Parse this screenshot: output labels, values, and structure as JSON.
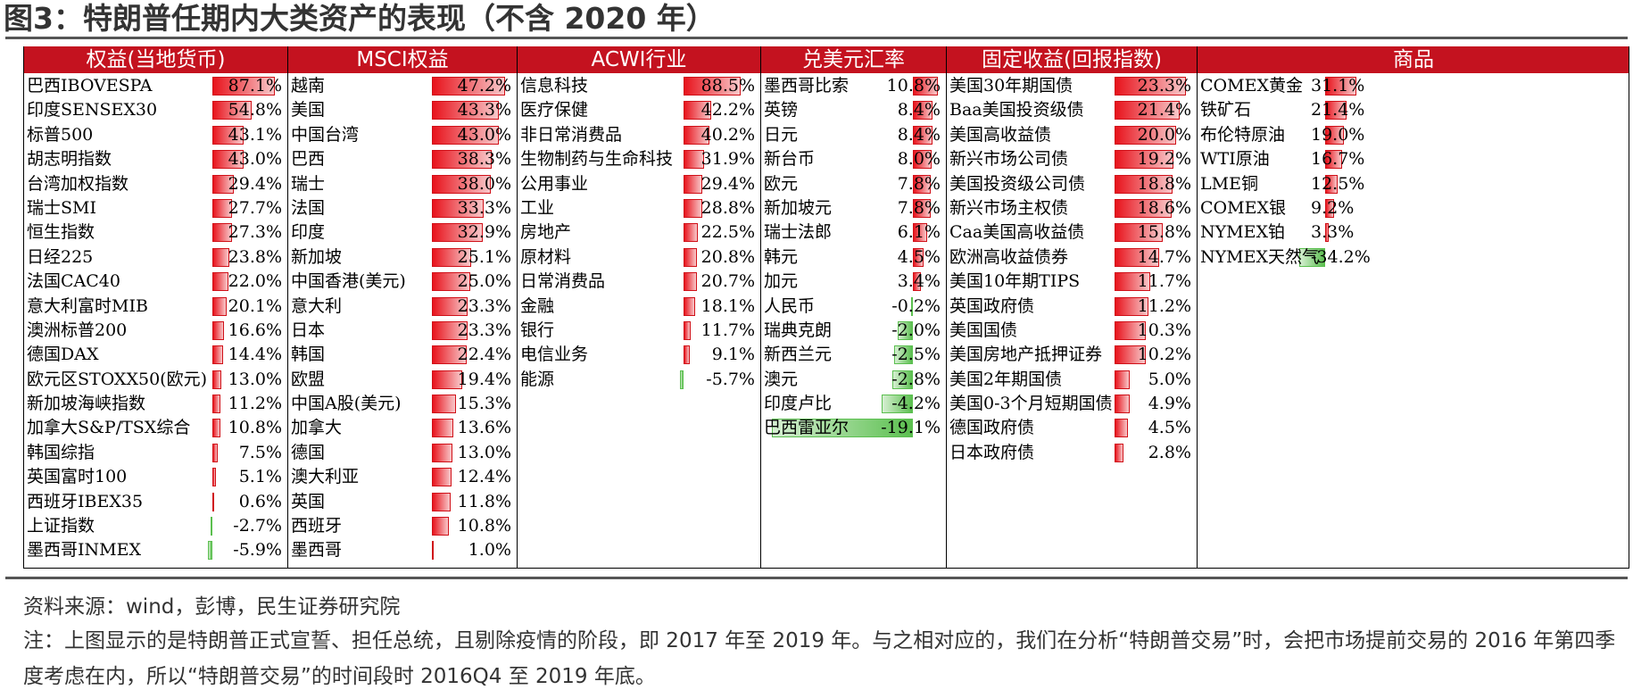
{
  "title": "图3：特朗普任期内大类资产的表现（不含 2020 年）",
  "source": "资料来源：wind，彭博，民生证券研究院",
  "note": "注：上图显示的是特朗普正式宣誓、担任总统，且剔除疫情的阶段，即 2017 年至 2019 年。与之相对应的，我们在分析“特朗普交易”时，会把市场提前交易的 2016 年第四季度考虑在内，所以“特朗普交易”的时间段时 2016Q4 至 2019 年底。",
  "colors": {
    "header": "#c4121f",
    "positive": "#e8131c",
    "negative": "#5bbf4f"
  },
  "chart_data": {
    "type": "table",
    "sections": [
      {
        "header": "权益(当地货币)",
        "max": 87.1,
        "rows": [
          {
            "name": "巴西IBOVESPA",
            "value": 87.1,
            "label": "87.1%"
          },
          {
            "name": "印度SENSEX30",
            "value": 54.8,
            "label": "54.8%"
          },
          {
            "name": "标普500",
            "value": 43.1,
            "label": "43.1%"
          },
          {
            "name": "胡志明指数",
            "value": 43.0,
            "label": "43.0%"
          },
          {
            "name": "台湾加权指数",
            "value": 29.4,
            "label": "29.4%"
          },
          {
            "name": "瑞士SMI",
            "value": 27.7,
            "label": "27.7%"
          },
          {
            "name": "恒生指数",
            "value": 27.3,
            "label": "27.3%"
          },
          {
            "name": "日经225",
            "value": 23.8,
            "label": "23.8%"
          },
          {
            "name": "法国CAC40",
            "value": 22.0,
            "label": "22.0%"
          },
          {
            "name": "意大利富时MIB",
            "value": 20.1,
            "label": "20.1%"
          },
          {
            "name": "澳洲标普200",
            "value": 16.6,
            "label": "16.6%"
          },
          {
            "name": "德国DAX",
            "value": 14.4,
            "label": "14.4%"
          },
          {
            "name": "欧元区STOXX50(欧元)",
            "value": 13.0,
            "label": "13.0%"
          },
          {
            "name": "新加坡海峡指数",
            "value": 11.2,
            "label": "11.2%"
          },
          {
            "name": "加拿大S&P/TSX综合",
            "value": 10.8,
            "label": "10.8%"
          },
          {
            "name": "韩国综指",
            "value": 7.5,
            "label": "7.5%"
          },
          {
            "name": "英国富时100",
            "value": 5.1,
            "label": "5.1%"
          },
          {
            "name": "西班牙IBEX35",
            "value": 0.6,
            "label": "0.6%"
          },
          {
            "name": "上证指数",
            "value": -2.7,
            "label": "-2.7%"
          },
          {
            "name": "墨西哥INMEX",
            "value": -5.9,
            "label": "-5.9%"
          }
        ]
      },
      {
        "header": "MSCI权益",
        "max": 47.2,
        "rows": [
          {
            "name": "越南",
            "value": 47.2,
            "label": "47.2%"
          },
          {
            "name": "美国",
            "value": 43.3,
            "label": "43.3%"
          },
          {
            "name": "中国台湾",
            "value": 43.0,
            "label": "43.0%"
          },
          {
            "name": "巴西",
            "value": 38.3,
            "label": "38.3%"
          },
          {
            "name": "瑞士",
            "value": 38.0,
            "label": "38.0%"
          },
          {
            "name": "法国",
            "value": 33.3,
            "label": "33.3%"
          },
          {
            "name": "印度",
            "value": 32.9,
            "label": "32.9%"
          },
          {
            "name": "新加坡",
            "value": 25.1,
            "label": "25.1%"
          },
          {
            "name": "中国香港(美元)",
            "value": 25.0,
            "label": "25.0%"
          },
          {
            "name": "意大利",
            "value": 23.3,
            "label": "23.3%"
          },
          {
            "name": "日本",
            "value": 23.3,
            "label": "23.3%"
          },
          {
            "name": "韩国",
            "value": 22.4,
            "label": "22.4%"
          },
          {
            "name": "欧盟",
            "value": 19.4,
            "label": "19.4%"
          },
          {
            "name": "中国A股(美元)",
            "value": 15.3,
            "label": "15.3%"
          },
          {
            "name": "加拿大",
            "value": 13.6,
            "label": "13.6%"
          },
          {
            "name": "德国",
            "value": 13.0,
            "label": "13.0%"
          },
          {
            "name": "澳大利亚",
            "value": 12.4,
            "label": "12.4%"
          },
          {
            "name": "英国",
            "value": 11.8,
            "label": "11.8%"
          },
          {
            "name": "西班牙",
            "value": 10.8,
            "label": "10.8%"
          },
          {
            "name": "墨西哥",
            "value": 1.0,
            "label": "1.0%"
          }
        ]
      },
      {
        "header": "ACWI行业",
        "max": 88.5,
        "rows": [
          {
            "name": "信息科技",
            "value": 88.5,
            "label": "88.5%"
          },
          {
            "name": "医疗保健",
            "value": 42.2,
            "label": "42.2%"
          },
          {
            "name": "非日常消费品",
            "value": 40.2,
            "label": "40.2%"
          },
          {
            "name": "生物制药与生命科技",
            "value": 31.9,
            "label": "31.9%"
          },
          {
            "name": "公用事业",
            "value": 29.4,
            "label": "29.4%"
          },
          {
            "name": "工业",
            "value": 28.8,
            "label": "28.8%"
          },
          {
            "name": "房地产",
            "value": 22.5,
            "label": "22.5%"
          },
          {
            "name": "原材料",
            "value": 20.8,
            "label": "20.8%"
          },
          {
            "name": "日常消费品",
            "value": 20.7,
            "label": "20.7%"
          },
          {
            "name": "金融",
            "value": 18.1,
            "label": "18.1%"
          },
          {
            "name": "银行",
            "value": 11.7,
            "label": "11.7%"
          },
          {
            "name": "电信业务",
            "value": 9.1,
            "label": "9.1%"
          },
          {
            "name": "能源",
            "value": -5.7,
            "label": "-5.7%"
          }
        ]
      },
      {
        "header": "兑美元汇率",
        "max": 19.1,
        "rows": [
          {
            "name": "墨西哥比索",
            "value": 10.8,
            "label": "10.8%"
          },
          {
            "name": "英镑",
            "value": 8.4,
            "label": "8.4%"
          },
          {
            "name": "日元",
            "value": 8.4,
            "label": "8.4%"
          },
          {
            "name": "新台币",
            "value": 8.0,
            "label": "8.0%"
          },
          {
            "name": "欧元",
            "value": 7.8,
            "label": "7.8%"
          },
          {
            "name": "新加坡元",
            "value": 7.8,
            "label": "7.8%"
          },
          {
            "name": "瑞士法郎",
            "value": 6.1,
            "label": "6.1%"
          },
          {
            "name": "韩元",
            "value": 4.5,
            "label": "4.5%"
          },
          {
            "name": "加元",
            "value": 3.4,
            "label": "3.4%"
          },
          {
            "name": "人民币",
            "value": -0.2,
            "label": "-0.2%"
          },
          {
            "name": "瑞典克朗",
            "value": -2.0,
            "label": "-2.0%"
          },
          {
            "name": "新西兰元",
            "value": -2.5,
            "label": "-2.5%"
          },
          {
            "name": "澳元",
            "value": -2.8,
            "label": "-2.8%"
          },
          {
            "name": "印度卢比",
            "value": -4.2,
            "label": "-4.2%"
          },
          {
            "name": "巴西雷亚尔",
            "value": -19.1,
            "label": "-19.1%"
          }
        ]
      },
      {
        "header": "固定收益(回报指数)",
        "max": 23.3,
        "rows": [
          {
            "name": "美国30年期国债",
            "value": 23.3,
            "label": "23.3%"
          },
          {
            "name": "Baa美国投资级债",
            "value": 21.4,
            "label": "21.4%"
          },
          {
            "name": "美国高收益债",
            "value": 20.0,
            "label": "20.0%"
          },
          {
            "name": "新兴市场公司债",
            "value": 19.2,
            "label": "19.2%"
          },
          {
            "name": "美国投资级公司债",
            "value": 18.8,
            "label": "18.8%"
          },
          {
            "name": "新兴市场主权债",
            "value": 18.6,
            "label": "18.6%"
          },
          {
            "name": "Caa美国高收益债",
            "value": 15.8,
            "label": "15.8%"
          },
          {
            "name": "欧洲高收益债券",
            "value": 14.7,
            "label": "14.7%"
          },
          {
            "name": "美国10年期TIPS",
            "value": 11.7,
            "label": "11.7%"
          },
          {
            "name": "英国政府债",
            "value": 11.2,
            "label": "11.2%"
          },
          {
            "name": "美国国债",
            "value": 10.3,
            "label": "10.3%"
          },
          {
            "name": "美国房地产抵押证券",
            "value": 10.2,
            "label": "10.2%"
          },
          {
            "name": "美国2年期国债",
            "value": 5.0,
            "label": "5.0%"
          },
          {
            "name": "美国0-3个月短期国债",
            "value": 4.9,
            "label": "4.9%"
          },
          {
            "name": "德国政府债",
            "value": 4.5,
            "label": "4.5%"
          },
          {
            "name": "日本政府债",
            "value": 2.8,
            "label": "2.8%"
          }
        ]
      },
      {
        "header": "商品",
        "max": 34.2,
        "rows": [
          {
            "name": "COMEX黄金",
            "value": 31.1,
            "label": "31.1%"
          },
          {
            "name": "铁矿石",
            "value": 21.4,
            "label": "21.4%"
          },
          {
            "name": "布伦特原油",
            "value": 19.0,
            "label": "19.0%"
          },
          {
            "name": "WTI原油",
            "value": 16.7,
            "label": "16.7%"
          },
          {
            "name": "LME铜",
            "value": 12.5,
            "label": "12.5%"
          },
          {
            "name": "COMEX银",
            "value": 9.2,
            "label": "9.2%"
          },
          {
            "name": "NYMEX铂",
            "value": 3.3,
            "label": "3.3%"
          },
          {
            "name": "NYMEX天然气",
            "value": -34.2,
            "label": "-34.2%"
          }
        ]
      }
    ]
  }
}
